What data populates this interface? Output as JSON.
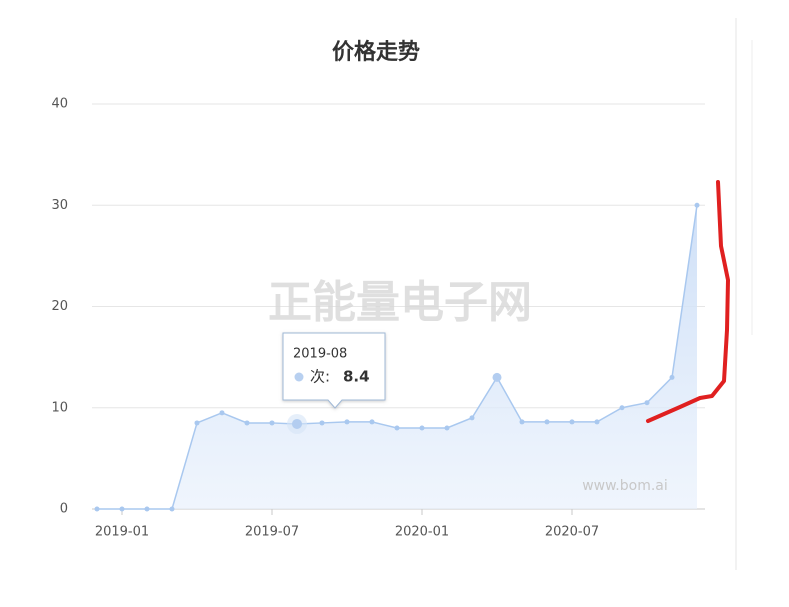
{
  "chart_data": {
    "type": "area",
    "title": "价格走势",
    "categories": [
      null,
      "2019-01",
      null,
      null,
      null,
      null,
      null,
      "2019-07",
      null,
      null,
      null,
      null,
      null,
      "2020-01",
      null,
      null,
      null,
      null,
      null,
      "2020-07",
      null,
      null,
      null,
      null,
      null
    ],
    "series": [
      {
        "color": "#a9c8ef",
        "values": [
          0,
          0,
          0,
          0,
          8.5,
          9.5,
          8.5,
          8.5,
          8.4,
          8.5,
          8.6,
          8.6,
          8.0,
          8.0,
          8.0,
          9.0,
          13,
          8.6,
          8.6,
          8.6,
          8.6,
          10,
          10.5,
          13,
          30
        ]
      }
    ],
    "ylim": [
      0,
      40
    ],
    "yticks": [
      0,
      10,
      20,
      30,
      40
    ],
    "grid": true,
    "tooltip": {
      "title": "2019-08",
      "label": "次:"
    },
    "watermark": {
      "main": "正能量电子网",
      "site": "www.bom.ai"
    }
  }
}
